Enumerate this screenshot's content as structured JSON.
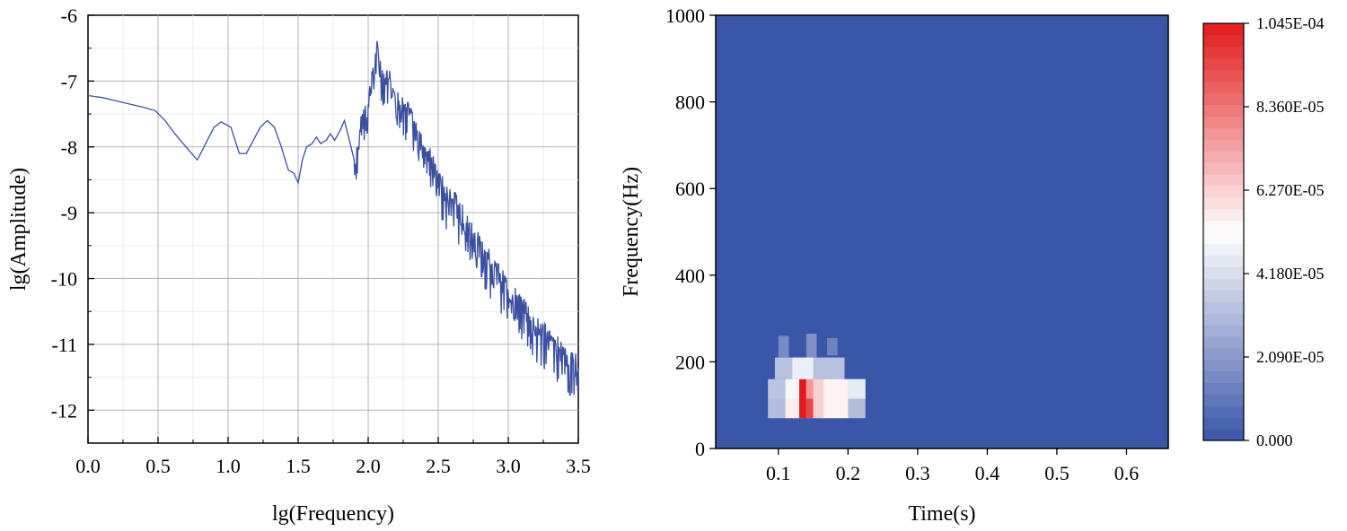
{
  "chart_data": [
    {
      "type": "line",
      "xlabel": "lg(Frequency)",
      "ylabel": "lg(Amplitude)",
      "xlim": [
        0.0,
        3.5
      ],
      "ylim": [
        -12.5,
        -6.0
      ],
      "x_ticks": [
        "0.0",
        "0.5",
        "1.0",
        "1.5",
        "2.0",
        "2.5",
        "3.0",
        "3.5"
      ],
      "y_ticks": [
        "-6",
        "-7",
        "-8",
        "-9",
        "-10",
        "-11",
        "-12"
      ],
      "grid": true,
      "line_color": "#3a4fa0",
      "series": [
        {
          "x": [
            0.0,
            0.1,
            0.2,
            0.3,
            0.4,
            0.48,
            0.55,
            0.62,
            0.7,
            0.78,
            0.84,
            0.9,
            0.95,
            1.02,
            1.08,
            1.13,
            1.18,
            1.23,
            1.28,
            1.33,
            1.38,
            1.43,
            1.47,
            1.5,
            1.53,
            1.56,
            1.6,
            1.63,
            1.66,
            1.7,
            1.73,
            1.76,
            1.8,
            1.83,
            1.86,
            1.9,
            1.93,
            1.96,
            2.0,
            2.03,
            2.06,
            2.09,
            2.12,
            2.15,
            2.18,
            2.22,
            2.26,
            2.3,
            2.35,
            2.4,
            2.45,
            2.5,
            2.55,
            2.6,
            2.7,
            2.8,
            2.9,
            3.0,
            3.1,
            3.2,
            3.3,
            3.4,
            3.5
          ],
          "y": [
            -7.22,
            -7.25,
            -7.3,
            -7.35,
            -7.4,
            -7.45,
            -7.6,
            -7.8,
            -8.0,
            -8.2,
            -7.95,
            -7.7,
            -7.62,
            -7.7,
            -8.1,
            -8.1,
            -7.9,
            -7.7,
            -7.6,
            -7.7,
            -8.0,
            -8.35,
            -8.4,
            -8.55,
            -8.2,
            -8.0,
            -7.95,
            -7.85,
            -7.95,
            -7.9,
            -7.8,
            -7.9,
            -7.75,
            -7.6,
            -7.85,
            -8.2,
            -8.0,
            -7.5,
            -7.35,
            -6.9,
            -6.5,
            -6.85,
            -7.0,
            -6.95,
            -7.15,
            -7.3,
            -7.45,
            -7.5,
            -7.75,
            -8.0,
            -8.2,
            -8.5,
            -8.7,
            -8.8,
            -9.15,
            -9.5,
            -9.85,
            -10.2,
            -10.45,
            -10.75,
            -10.95,
            -11.15,
            -11.35
          ]
        }
      ]
    },
    {
      "type": "heatmap",
      "xlabel": "Time(s)",
      "ylabel": "Frequency(Hz)",
      "xlim": [
        0.01,
        0.66
      ],
      "ylim": [
        0,
        1000
      ],
      "x_ticks": [
        "0.1",
        "0.2",
        "0.3",
        "0.4",
        "0.5",
        "0.6"
      ],
      "y_ticks": [
        "0",
        "200",
        "400",
        "600",
        "800",
        "1000"
      ],
      "background_value": 0.0,
      "cells": [
        {
          "t0": 0.085,
          "t1": 0.225,
          "f0": 70,
          "f1": 115,
          "v": 3.2e-05
        },
        {
          "t0": 0.085,
          "t1": 0.225,
          "f0": 115,
          "f1": 160,
          "v": 3.4e-05
        },
        {
          "t0": 0.095,
          "t1": 0.195,
          "f0": 160,
          "f1": 210,
          "v": 3.3e-05
        },
        {
          "t0": 0.1,
          "t1": 0.115,
          "f0": 210,
          "f1": 260,
          "v": 1.6e-05
        },
        {
          "t0": 0.14,
          "t1": 0.155,
          "f0": 210,
          "f1": 265,
          "v": 1.8e-05
        },
        {
          "t0": 0.17,
          "t1": 0.185,
          "f0": 215,
          "f1": 255,
          "v": 1.4e-05
        },
        {
          "t0": 0.11,
          "t1": 0.13,
          "f0": 70,
          "f1": 115,
          "v": 5.6e-05
        },
        {
          "t0": 0.11,
          "t1": 0.13,
          "f0": 115,
          "f1": 160,
          "v": 5e-05
        },
        {
          "t0": 0.13,
          "t1": 0.14,
          "f0": 70,
          "f1": 160,
          "v": 0.0001045
        },
        {
          "t0": 0.14,
          "t1": 0.15,
          "f0": 70,
          "f1": 115,
          "v": 9.4e-05
        },
        {
          "t0": 0.14,
          "t1": 0.15,
          "f0": 115,
          "f1": 160,
          "v": 7.6e-05
        },
        {
          "t0": 0.15,
          "t1": 0.165,
          "f0": 70,
          "f1": 160,
          "v": 6.3e-05
        },
        {
          "t0": 0.165,
          "t1": 0.2,
          "f0": 70,
          "f1": 160,
          "v": 5.5e-05
        },
        {
          "t0": 0.2,
          "t1": 0.225,
          "f0": 115,
          "f1": 160,
          "v": 4.6e-05
        },
        {
          "t0": 0.12,
          "t1": 0.15,
          "f0": 160,
          "f1": 210,
          "v": 4.7e-05
        }
      ],
      "colorbar": {
        "min": 0.0,
        "max": 0.0001045,
        "tick_values": [
          0.0,
          2.09e-05,
          4.18e-05,
          6.27e-05,
          8.36e-05,
          0.0001045
        ],
        "tick_labels": [
          "0.000",
          "2.090E-05",
          "4.180E-05",
          "6.270E-05",
          "8.360E-05",
          "1.045E-04"
        ],
        "low_color": "#3a56a8",
        "mid_color": "#ffffff",
        "high_color": "#e31a1c"
      }
    }
  ]
}
